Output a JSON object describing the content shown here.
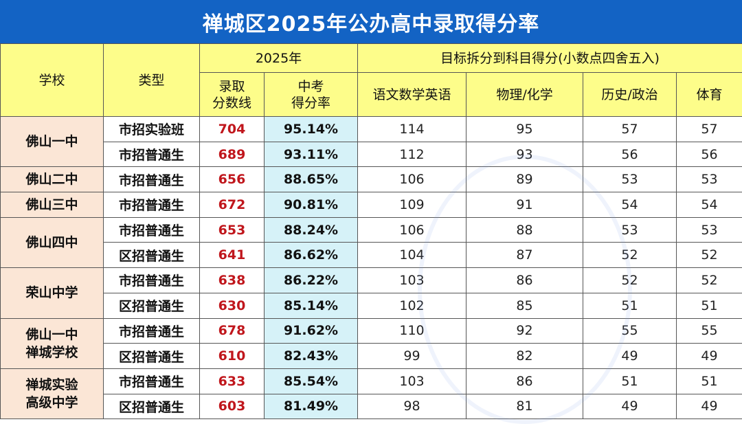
{
  "title": "禅城区2025年公办高中录取得分率",
  "headers": {
    "school": "学校",
    "type": "类型",
    "year_group": "2025年",
    "subject_group": "目标拆分到科目得分(小数点四舍五入)",
    "score_line_1": "录取",
    "score_line_2": "分数线",
    "rate_line_1": "中考",
    "rate_line_2": "得分率",
    "chinese_math_english": "语文数学英语",
    "physics_chemistry": "物理/化学",
    "history_politics": "历史/政治",
    "pe": "体育"
  },
  "schools": [
    {
      "name_1": "佛山一中",
      "name_2": "",
      "rows": [
        {
          "type": "市招实验班",
          "score": "704",
          "rate": "95.14%",
          "cme": "114",
          "pc": "95",
          "hp": "57",
          "pe": "57"
        },
        {
          "type": "市招普通生",
          "score": "689",
          "rate": "93.11%",
          "cme": "112",
          "pc": "93",
          "hp": "56",
          "pe": "56"
        }
      ]
    },
    {
      "name_1": "佛山二中",
      "name_2": "",
      "rows": [
        {
          "type": "市招普通生",
          "score": "656",
          "rate": "88.65%",
          "cme": "106",
          "pc": "89",
          "hp": "53",
          "pe": "53"
        }
      ]
    },
    {
      "name_1": "佛山三中",
      "name_2": "",
      "rows": [
        {
          "type": "市招普通生",
          "score": "672",
          "rate": "90.81%",
          "cme": "109",
          "pc": "91",
          "hp": "54",
          "pe": "54"
        }
      ]
    },
    {
      "name_1": "佛山四中",
      "name_2": "",
      "rows": [
        {
          "type": "市招普通生",
          "score": "653",
          "rate": "88.24%",
          "cme": "106",
          "pc": "88",
          "hp": "53",
          "pe": "53"
        },
        {
          "type": "区招普通生",
          "score": "641",
          "rate": "86.62%",
          "cme": "104",
          "pc": "87",
          "hp": "52",
          "pe": "52"
        }
      ]
    },
    {
      "name_1": "荣山中学",
      "name_2": "",
      "rows": [
        {
          "type": "市招普通生",
          "score": "638",
          "rate": "86.22%",
          "cme": "103",
          "pc": "86",
          "hp": "52",
          "pe": "52"
        },
        {
          "type": "区招普通生",
          "score": "630",
          "rate": "85.14%",
          "cme": "102",
          "pc": "85",
          "hp": "51",
          "pe": "51"
        }
      ]
    },
    {
      "name_1": "佛山一中",
      "name_2": "禅城学校",
      "rows": [
        {
          "type": "市招普通生",
          "score": "678",
          "rate": "91.62%",
          "cme": "110",
          "pc": "92",
          "hp": "55",
          "pe": "55"
        },
        {
          "type": "区招普通生",
          "score": "610",
          "rate": "82.43%",
          "cme": "99",
          "pc": "82",
          "hp": "49",
          "pe": "49"
        }
      ]
    },
    {
      "name_1": "禅城实验",
      "name_2": "高级中学",
      "rows": [
        {
          "type": "市招普通生",
          "score": "633",
          "rate": "85.54%",
          "cme": "103",
          "pc": "86",
          "hp": "51",
          "pe": "51"
        },
        {
          "type": "区招普通生",
          "score": "603",
          "rate": "81.49%",
          "cme": "98",
          "pc": "81",
          "hp": "49",
          "pe": "49"
        }
      ]
    }
  ],
  "colors": {
    "title_bg": "#1363c4",
    "header_bg": "#fdfd8a",
    "school_bg": "#fbe6d6",
    "rate_bg": "#d6f2f8",
    "score_text": "#c0161c"
  }
}
